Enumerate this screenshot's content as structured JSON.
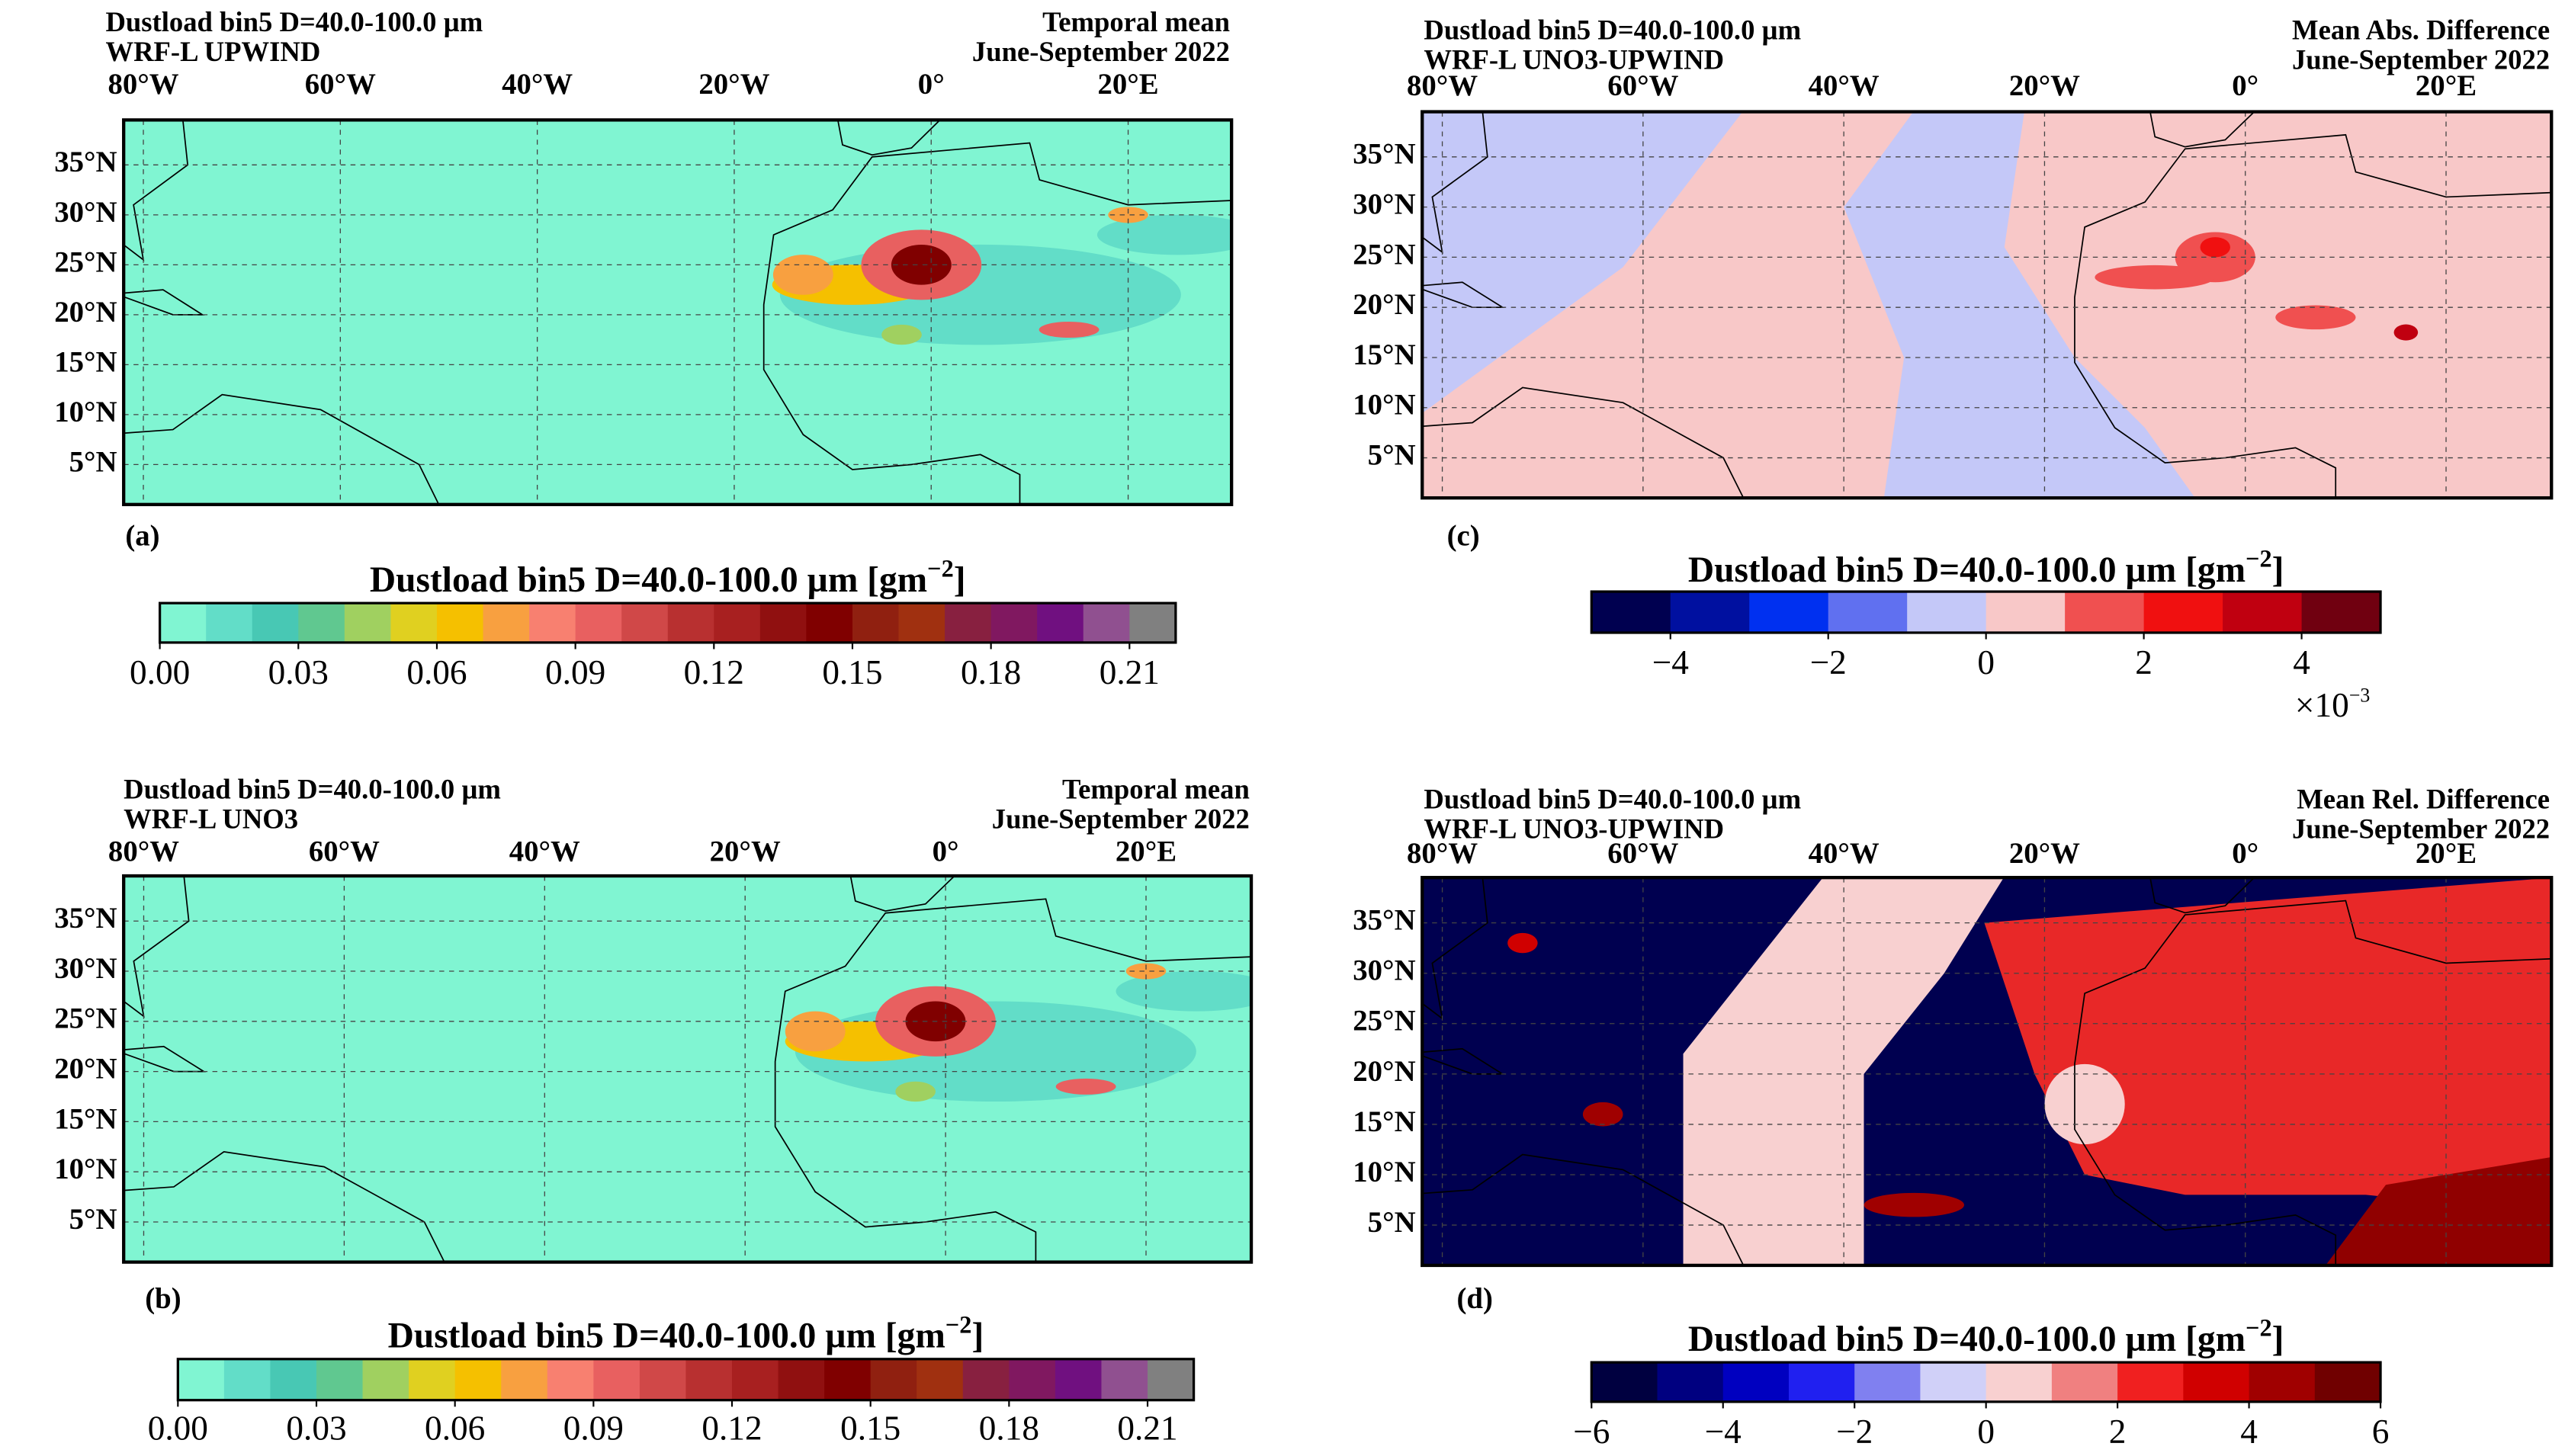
{
  "panels": [
    {
      "letter": "(a)",
      "title_left": [
        "Dustload bin5 D=40.0-100.0 µm",
        "WRF-L UPWIND"
      ],
      "title_right": [
        "Temporal mean",
        "June-September 2022"
      ],
      "map": {
        "xlim": [
          -82,
          30.5
        ],
        "ylim": [
          1,
          39.5
        ],
        "lon_ticks": [
          {
            "value": -80,
            "label": "80°W"
          },
          {
            "value": -60,
            "label": "60°W"
          },
          {
            "value": -40,
            "label": "40°W"
          },
          {
            "value": -20,
            "label": "20°W"
          },
          {
            "value": 0,
            "label": "0°"
          },
          {
            "value": 20,
            "label": "20°E"
          }
        ],
        "lat_ticks": [
          {
            "value": 35,
            "label": "35°N"
          },
          {
            "value": 30,
            "label": "30°N"
          },
          {
            "value": 25,
            "label": "25°N"
          },
          {
            "value": 20,
            "label": "20°N"
          },
          {
            "value": 15,
            "label": "15°N"
          },
          {
            "value": 10,
            "label": "10°N"
          },
          {
            "value": 5,
            "label": "5°N"
          }
        ]
      },
      "colorbar": {
        "label": "Dustload bin5 D=40.0-100.0 µm [gm",
        "label_exp": "−2",
        "label_end": "]",
        "clim": [
          0,
          0.22
        ],
        "colors": [
          "#80f5d2",
          "#62ddc8",
          "#48c8b4",
          "#60c890",
          "#a0d060",
          "#e0d020",
          "#f5c000",
          "#f8a040",
          "#f88070",
          "#e86060",
          "#d04848",
          "#b83030",
          "#a82020",
          "#901010",
          "#800000",
          "#902010",
          "#a03010",
          "#882040",
          "#801860",
          "#701080",
          "#905090",
          "#808080"
        ],
        "ticks": [
          {
            "value": 0,
            "label": "0.00"
          },
          {
            "value": 0.03,
            "label": "0.03"
          },
          {
            "value": 0.06,
            "label": "0.06"
          },
          {
            "value": 0.09,
            "label": "0.09"
          },
          {
            "value": 0.12,
            "label": "0.12"
          },
          {
            "value": 0.15,
            "label": "0.15"
          },
          {
            "value": 0.18,
            "label": "0.18"
          },
          {
            "value": 0.21,
            "label": "0.21"
          }
        ]
      }
    },
    {
      "letter": "(b)",
      "title_left": [
        "Dustload bin5 D=40.0-100.0 µm",
        "WRF-L UNO3"
      ],
      "title_right": [
        "Temporal mean",
        "June-September 2022"
      ],
      "map": {
        "xlim": [
          -82,
          30.5
        ],
        "ylim": [
          1,
          39.5
        ],
        "lon_ticks": [
          {
            "value": -80,
            "label": "80°W"
          },
          {
            "value": -60,
            "label": "60°W"
          },
          {
            "value": -40,
            "label": "40°W"
          },
          {
            "value": -20,
            "label": "20°W"
          },
          {
            "value": 0,
            "label": "0°"
          },
          {
            "value": 20,
            "label": "20°E"
          }
        ],
        "lat_ticks": [
          {
            "value": 35,
            "label": "35°N"
          },
          {
            "value": 30,
            "label": "30°N"
          },
          {
            "value": 25,
            "label": "25°N"
          },
          {
            "value": 20,
            "label": "20°N"
          },
          {
            "value": 15,
            "label": "15°N"
          },
          {
            "value": 10,
            "label": "10°N"
          },
          {
            "value": 5,
            "label": "5°N"
          }
        ]
      },
      "colorbar": {
        "label": "Dustload bin5 D=40.0-100.0 µm [gm",
        "label_exp": "−2",
        "label_end": "]",
        "clim": [
          0,
          0.22
        ],
        "colors": [
          "#80f5d2",
          "#62ddc8",
          "#48c8b4",
          "#60c890",
          "#a0d060",
          "#e0d020",
          "#f5c000",
          "#f8a040",
          "#f88070",
          "#e86060",
          "#d04848",
          "#b83030",
          "#a82020",
          "#901010",
          "#800000",
          "#902010",
          "#a03010",
          "#882040",
          "#801860",
          "#701080",
          "#905090",
          "#808080"
        ],
        "ticks": [
          {
            "value": 0,
            "label": "0.00"
          },
          {
            "value": 0.03,
            "label": "0.03"
          },
          {
            "value": 0.06,
            "label": "0.06"
          },
          {
            "value": 0.09,
            "label": "0.09"
          },
          {
            "value": 0.12,
            "label": "0.12"
          },
          {
            "value": 0.15,
            "label": "0.15"
          },
          {
            "value": 0.18,
            "label": "0.18"
          },
          {
            "value": 0.21,
            "label": "0.21"
          }
        ]
      }
    },
    {
      "letter": "(c)",
      "title_left": [
        "Dustload bin5 D=40.0-100.0 µm",
        "WRF-L UNO3-UPWIND"
      ],
      "title_right": [
        "Mean Abs. Difference",
        "June-September 2022"
      ],
      "map": {
        "xlim": [
          -82,
          30.5
        ],
        "ylim": [
          1,
          39.5
        ],
        "lon_ticks": [
          {
            "value": -80,
            "label": "80°W"
          },
          {
            "value": -60,
            "label": "60°W"
          },
          {
            "value": -40,
            "label": "40°W"
          },
          {
            "value": -20,
            "label": "20°W"
          },
          {
            "value": 0,
            "label": "0°"
          },
          {
            "value": 20,
            "label": "20°E"
          }
        ],
        "lat_ticks": [
          {
            "value": 35,
            "label": "35°N"
          },
          {
            "value": 30,
            "label": "30°N"
          },
          {
            "value": 25,
            "label": "25°N"
          },
          {
            "value": 20,
            "label": "20°N"
          },
          {
            "value": 15,
            "label": "15°N"
          },
          {
            "value": 10,
            "label": "10°N"
          },
          {
            "value": 5,
            "label": "5°N"
          }
        ]
      },
      "colorbar": {
        "label": "Dustload bin5 D=40.0-100.0 µm [gm",
        "label_exp": "−2",
        "label_end": "]",
        "clim": [
          -5,
          5
        ],
        "multiplier": "×10",
        "multiplier_exp": "−3",
        "colors": [
          "#000050",
          "#0010a0",
          "#0030f0",
          "#6070f0",
          "#c4c8f8",
          "#f8c8c8",
          "#f05050",
          "#f01010",
          "#c00010",
          "#700010"
        ],
        "ticks": [
          {
            "value": -4,
            "label": "−4"
          },
          {
            "value": -2,
            "label": "−2"
          },
          0,
          2,
          4
        ]
      }
    },
    {
      "letter": "(d)",
      "title_left": [
        "Dustload bin5 D=40.0-100.0 µm",
        "WRF-L UNO3-UPWIND"
      ],
      "title_right": [
        "Mean Rel. Difference",
        "June-September 2022"
      ],
      "map": {
        "xlim": [
          -82,
          30.5
        ],
        "ylim": [
          1,
          39.5
        ],
        "lon_ticks": [
          {
            "value": -80,
            "label": "80°W"
          },
          {
            "value": -60,
            "label": "60°W"
          },
          {
            "value": -40,
            "label": "40°W"
          },
          {
            "value": -20,
            "label": "20°W"
          },
          {
            "value": 0,
            "label": "0°"
          },
          {
            "value": 20,
            "label": "20°E"
          }
        ],
        "lat_ticks": [
          {
            "value": 35,
            "label": "35°N"
          },
          {
            "value": 30,
            "label": "30°N"
          },
          {
            "value": 25,
            "label": "25°N"
          },
          {
            "value": 20,
            "label": "20°N"
          },
          {
            "value": 15,
            "label": "15°N"
          },
          {
            "value": 10,
            "label": "10°N"
          },
          {
            "value": 5,
            "label": "5°N"
          }
        ]
      },
      "colorbar": {
        "label": "Dustload bin5 D=40.0-100.0 µm [gm",
        "label_exp": "−2",
        "label_end": "]",
        "clim": [
          -6,
          6
        ],
        "colors": [
          "#000040",
          "#000080",
          "#0000c0",
          "#2020f0",
          "#8080f0",
          "#d0d0f8",
          "#f8d0d0",
          "#f08080",
          "#f02020",
          "#d00000",
          "#a00000",
          "#700000"
        ],
        "ticks": [
          {
            "value": -6,
            "label": "−6"
          },
          {
            "value": -4,
            "label": "−4"
          },
          {
            "value": -2,
            "label": "−2"
          },
          0,
          2,
          4,
          6
        ]
      }
    }
  ]
}
